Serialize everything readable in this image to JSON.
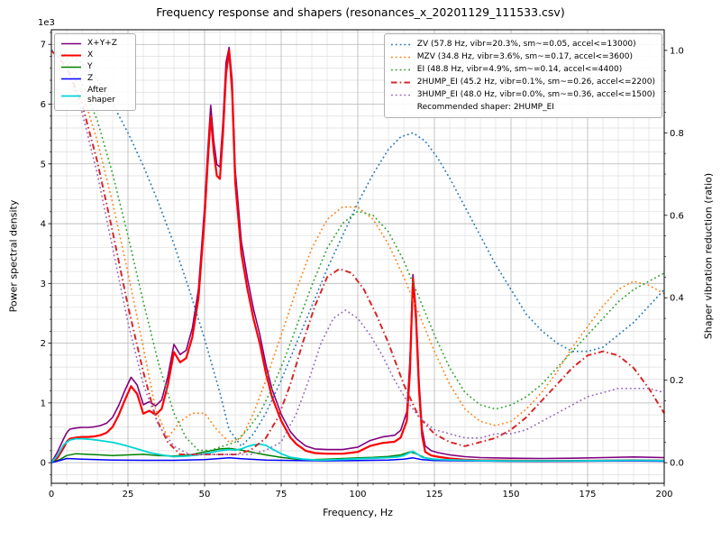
{
  "chart_data": {
    "type": "line",
    "title": "Frequency response and shapers (resonances_x_20201129_111533.csv)",
    "xlabel": "Frequency, Hz",
    "ylabel_left": "Power spectral density",
    "ylabel_right": "Shaper vibration reduction (ratio)",
    "y_left_offset_label": "1e3",
    "xlim": [
      0,
      200
    ],
    "ylim_left": [
      0,
      7000
    ],
    "ylim_right": [
      0,
      1
    ],
    "x_ticks": [
      0,
      25,
      50,
      75,
      100,
      125,
      150,
      175,
      200
    ],
    "y_left_ticks": [
      0,
      1,
      2,
      3,
      4,
      5,
      6,
      7
    ],
    "y_right_ticks": [
      "0.0",
      "0.2",
      "0.4",
      "0.6",
      "0.8",
      "1.0"
    ],
    "grid": true,
    "legend_note": "Recommended shaper: 2HUMP_EI",
    "psd_series": [
      {
        "label": "X+Y+Z",
        "color": "#800080",
        "style": "solid",
        "width": 1.6,
        "x": [
          0,
          2,
          4,
          5,
          6,
          8,
          10,
          12,
          14,
          16,
          18,
          20,
          22,
          24,
          26,
          28,
          30,
          32,
          34,
          36,
          38,
          40,
          42,
          44,
          46,
          48,
          50,
          51,
          52,
          53,
          54,
          55,
          56,
          57,
          58,
          59,
          60,
          62,
          64,
          66,
          68,
          70,
          72,
          75,
          78,
          80,
          83,
          86,
          90,
          95,
          100,
          104,
          108,
          112,
          114,
          116,
          117,
          118,
          119,
          120,
          121,
          122,
          124,
          126,
          130,
          135,
          140,
          150,
          160,
          170,
          180,
          190,
          200
        ],
        "y": [
          0,
          180,
          400,
          500,
          560,
          580,
          590,
          590,
          600,
          620,
          660,
          760,
          960,
          1210,
          1430,
          1300,
          970,
          1020,
          950,
          1050,
          1440,
          1980,
          1810,
          1880,
          2250,
          2900,
          4280,
          5180,
          5980,
          5380,
          4990,
          4950,
          5700,
          6700,
          6950,
          6400,
          4900,
          3700,
          3080,
          2560,
          2150,
          1640,
          1230,
          810,
          520,
          400,
          280,
          230,
          220,
          220,
          260,
          370,
          430,
          460,
          540,
          850,
          1700,
          3150,
          2550,
          1350,
          560,
          280,
          200,
          170,
          130,
          100,
          85,
          75,
          70,
          75,
          85,
          95,
          85
        ]
      },
      {
        "label": "X",
        "color": "#ff0000",
        "style": "solid",
        "width": 2.2,
        "x": [
          0,
          2,
          4,
          5,
          6,
          8,
          10,
          12,
          14,
          16,
          18,
          20,
          22,
          24,
          26,
          28,
          30,
          32,
          34,
          36,
          38,
          40,
          42,
          44,
          46,
          48,
          50,
          51,
          52,
          53,
          54,
          55,
          56,
          57,
          58,
          59,
          60,
          62,
          64,
          66,
          68,
          70,
          72,
          75,
          78,
          80,
          83,
          86,
          90,
          95,
          100,
          104,
          108,
          112,
          114,
          116,
          117,
          118,
          119,
          120,
          121,
          122,
          124,
          126,
          130,
          135,
          140,
          150,
          160,
          170,
          180,
          190,
          200
        ],
        "y": [
          0,
          80,
          250,
          350,
          400,
          420,
          430,
          430,
          440,
          460,
          500,
          600,
          800,
          1050,
          1280,
          1150,
          820,
          870,
          800,
          900,
          1300,
          1850,
          1680,
          1750,
          2100,
          2750,
          4100,
          5000,
          5800,
          5200,
          4800,
          4750,
          5500,
          6500,
          6900,
          6200,
          4700,
          3500,
          2900,
          2400,
          2000,
          1500,
          1100,
          700,
          420,
          310,
          200,
          160,
          150,
          150,
          180,
          280,
          330,
          350,
          420,
          700,
          1500,
          3080,
          2400,
          1200,
          450,
          180,
          120,
          100,
          70,
          50,
          40,
          35,
          30,
          30,
          35,
          40,
          35
        ]
      },
      {
        "label": "Y",
        "color": "#008000",
        "style": "solid",
        "width": 1.5,
        "x": [
          0,
          3,
          5,
          8,
          12,
          16,
          20,
          25,
          30,
          35,
          40,
          45,
          50,
          55,
          58,
          62,
          66,
          70,
          75,
          80,
          85,
          90,
          95,
          100,
          105,
          110,
          114,
          117,
          119,
          122,
          126,
          130,
          140,
          150,
          160,
          170,
          180,
          190,
          200
        ],
        "y": [
          0,
          60,
          120,
          150,
          140,
          130,
          120,
          130,
          140,
          120,
          110,
          130,
          180,
          230,
          240,
          210,
          170,
          130,
          90,
          60,
          50,
          60,
          70,
          80,
          90,
          105,
          130,
          180,
          150,
          80,
          50,
          40,
          30,
          25,
          25,
          30,
          35,
          40,
          35
        ]
      },
      {
        "label": "Z",
        "color": "#0000ff",
        "style": "solid",
        "width": 1.5,
        "x": [
          0,
          3,
          5,
          10,
          15,
          20,
          30,
          40,
          50,
          55,
          58,
          62,
          70,
          80,
          90,
          100,
          110,
          115,
          118,
          121,
          125,
          135,
          150,
          170,
          190,
          200
        ],
        "y": [
          0,
          40,
          70,
          60,
          50,
          45,
          40,
          40,
          50,
          70,
          80,
          65,
          45,
          35,
          30,
          35,
          45,
          60,
          80,
          50,
          35,
          30,
          25,
          25,
          30,
          25
        ]
      },
      {
        "label": "After shaper",
        "color": "#00d5d5",
        "style": "solid",
        "width": 1.8,
        "x": [
          0,
          2,
          4,
          6,
          8,
          10,
          13,
          16,
          20,
          24,
          28,
          32,
          36,
          40,
          44,
          48,
          52,
          55,
          58,
          60,
          62,
          64,
          66,
          68,
          70,
          72,
          75,
          78,
          82,
          86,
          90,
          95,
          100,
          105,
          110,
          113,
          115,
          117,
          118,
          119,
          121,
          124,
          128,
          132,
          140,
          150,
          160,
          170,
          180,
          190,
          200
        ],
        "y": [
          0,
          120,
          300,
          380,
          400,
          400,
          390,
          370,
          340,
          290,
          230,
          170,
          130,
          100,
          110,
          130,
          170,
          200,
          220,
          210,
          230,
          270,
          300,
          310,
          290,
          230,
          150,
          90,
          60,
          45,
          45,
          55,
          65,
          75,
          85,
          95,
          120,
          170,
          190,
          160,
          90,
          60,
          50,
          45,
          35,
          30,
          30,
          30,
          35,
          40,
          35
        ]
      }
    ],
    "shaper_series": [
      {
        "label": "ZV (57.8 Hz, vibr=20.3%, sm~=0.05, accel<=13000)",
        "color": "#1f77b4",
        "style": "dotted",
        "width": 1.6,
        "x": [
          0,
          5,
          10,
          15,
          20,
          25,
          30,
          35,
          40,
          45,
          50,
          55,
          58,
          62,
          66,
          70,
          75,
          80,
          85,
          90,
          95,
          100,
          105,
          110,
          114,
          118,
          122,
          126,
          130,
          135,
          140,
          145,
          150,
          155,
          160,
          165,
          170,
          175,
          180,
          185,
          190,
          195,
          200
        ],
        "y": [
          1.0,
          0.99,
          0.97,
          0.93,
          0.87,
          0.8,
          0.72,
          0.63,
          0.53,
          0.42,
          0.3,
          0.17,
          0.08,
          0.04,
          0.07,
          0.12,
          0.2,
          0.29,
          0.38,
          0.47,
          0.55,
          0.63,
          0.7,
          0.76,
          0.79,
          0.8,
          0.78,
          0.74,
          0.69,
          0.62,
          0.55,
          0.48,
          0.42,
          0.36,
          0.32,
          0.29,
          0.27,
          0.27,
          0.28,
          0.31,
          0.34,
          0.38,
          0.42
        ]
      },
      {
        "label": "MZV (34.8 Hz, vibr=3.6%, sm~=0.17, accel<=3600)",
        "color": "#ff7f0e",
        "style": "dotted",
        "width": 1.6,
        "x": [
          0,
          5,
          10,
          15,
          20,
          25,
          30,
          34,
          38,
          42,
          46,
          50,
          54,
          58,
          62,
          66,
          70,
          75,
          80,
          85,
          90,
          95,
          100,
          105,
          110,
          115,
          120,
          125,
          130,
          135,
          140,
          145,
          150,
          155,
          160,
          165,
          170,
          175,
          180,
          185,
          190,
          195,
          200
        ],
        "y": [
          1.0,
          0.97,
          0.9,
          0.78,
          0.63,
          0.46,
          0.28,
          0.13,
          0.06,
          0.1,
          0.12,
          0.12,
          0.08,
          0.05,
          0.06,
          0.12,
          0.2,
          0.31,
          0.42,
          0.52,
          0.59,
          0.62,
          0.62,
          0.59,
          0.53,
          0.45,
          0.36,
          0.27,
          0.19,
          0.13,
          0.1,
          0.09,
          0.1,
          0.13,
          0.17,
          0.22,
          0.28,
          0.33,
          0.38,
          0.42,
          0.44,
          0.43,
          0.41
        ]
      },
      {
        "label": "EI (48.8 Hz, vibr=4.9%, sm~=0.14, accel<=4400)",
        "color": "#2ca02c",
        "style": "dotted",
        "width": 1.6,
        "x": [
          0,
          5,
          10,
          15,
          20,
          25,
          30,
          35,
          40,
          44,
          48,
          52,
          56,
          60,
          64,
          68,
          72,
          76,
          80,
          85,
          90,
          95,
          100,
          105,
          110,
          115,
          120,
          125,
          130,
          135,
          140,
          145,
          150,
          155,
          160,
          165,
          170,
          175,
          180,
          185,
          190,
          195,
          200
        ],
        "y": [
          1.0,
          0.98,
          0.92,
          0.83,
          0.7,
          0.55,
          0.39,
          0.24,
          0.12,
          0.06,
          0.03,
          0.03,
          0.04,
          0.05,
          0.08,
          0.12,
          0.18,
          0.25,
          0.33,
          0.43,
          0.52,
          0.58,
          0.61,
          0.6,
          0.56,
          0.49,
          0.4,
          0.31,
          0.23,
          0.17,
          0.14,
          0.13,
          0.14,
          0.16,
          0.19,
          0.23,
          0.27,
          0.31,
          0.35,
          0.39,
          0.42,
          0.44,
          0.46
        ]
      },
      {
        "label": "2HUMP_EI (45.2 Hz, vibr=0.1%, sm~=0.26, accel<=2200)",
        "color": "#d62728",
        "style": "dashdot",
        "width": 2.0,
        "x": [
          0,
          5,
          10,
          15,
          20,
          25,
          30,
          34,
          38,
          42,
          46,
          50,
          55,
          60,
          65,
          70,
          74,
          78,
          82,
          86,
          90,
          94,
          98,
          102,
          106,
          110,
          115,
          120,
          125,
          130,
          135,
          140,
          145,
          150,
          155,
          160,
          165,
          170,
          175,
          180,
          185,
          190,
          195,
          200
        ],
        "y": [
          1.0,
          0.96,
          0.87,
          0.73,
          0.56,
          0.38,
          0.22,
          0.11,
          0.05,
          0.02,
          0.02,
          0.02,
          0.02,
          0.02,
          0.03,
          0.06,
          0.11,
          0.19,
          0.29,
          0.38,
          0.45,
          0.47,
          0.46,
          0.42,
          0.36,
          0.29,
          0.19,
          0.11,
          0.07,
          0.05,
          0.04,
          0.05,
          0.06,
          0.08,
          0.11,
          0.15,
          0.19,
          0.23,
          0.26,
          0.27,
          0.26,
          0.23,
          0.18,
          0.12
        ]
      },
      {
        "label": "3HUMP_EI (48.0 Hz, vibr=0.0%, sm~=0.36, accel<=1500)",
        "color": "#9467bd",
        "style": "dotted",
        "width": 1.6,
        "x": [
          0,
          5,
          10,
          15,
          20,
          25,
          30,
          35,
          40,
          45,
          50,
          55,
          60,
          65,
          70,
          75,
          80,
          84,
          88,
          92,
          96,
          100,
          104,
          108,
          112,
          116,
          120,
          125,
          130,
          135,
          140,
          145,
          150,
          155,
          160,
          165,
          170,
          175,
          180,
          185,
          190,
          195,
          200
        ],
        "y": [
          1.0,
          0.96,
          0.85,
          0.7,
          0.52,
          0.34,
          0.19,
          0.09,
          0.04,
          0.02,
          0.02,
          0.02,
          0.02,
          0.02,
          0.03,
          0.05,
          0.12,
          0.2,
          0.29,
          0.35,
          0.37,
          0.35,
          0.31,
          0.26,
          0.2,
          0.15,
          0.11,
          0.08,
          0.07,
          0.06,
          0.06,
          0.07,
          0.07,
          0.08,
          0.1,
          0.12,
          0.14,
          0.16,
          0.17,
          0.18,
          0.18,
          0.18,
          0.17
        ]
      }
    ]
  }
}
